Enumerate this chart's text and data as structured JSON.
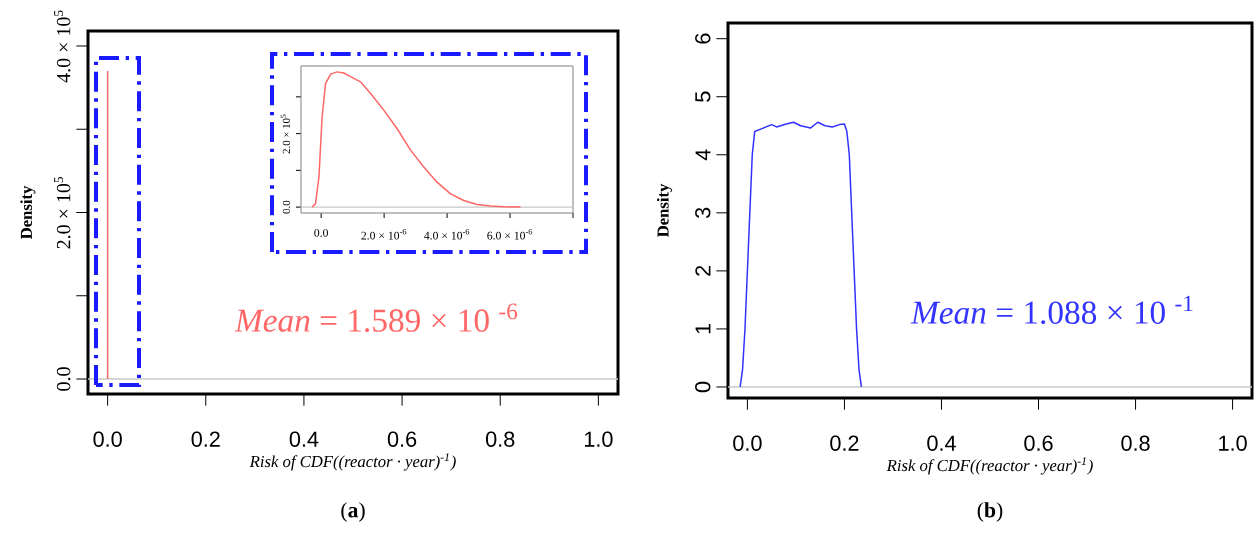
{
  "chart_data": [
    {
      "type": "line",
      "xlabel": "Risk of CDF((reactor · year)$^{-1}$)",
      "ylabel": "Density",
      "xlim": [
        -0.04,
        1.04
      ],
      "xticks": [
        {
          "value": 0,
          "label": "0.0"
        },
        {
          "value": 0.2,
          "label": "0.2"
        },
        {
          "value": 0.4,
          "label": "0.4"
        },
        {
          "value": 0.6,
          "label": "0.6"
        },
        {
          "value": 0.8,
          "label": "0.8"
        },
        {
          "value": 1.0,
          "label": "1.0"
        }
      ],
      "ylim": [
        -18000,
        418000
      ],
      "yticks": [
        {
          "value": 0,
          "label": "0.0"
        },
        {
          "value": 100000,
          "label": null
        },
        {
          "value": 200000,
          "label": "2.0 × 10$^{5}$"
        },
        {
          "value": 300000,
          "label": null
        },
        {
          "value": 400000,
          "label": "4.0 × 10$^{5}$"
        }
      ],
      "series": [
        {
          "color": "#ff6666",
          "x": [
            0,
            0
          ],
          "values": [
            0,
            370000
          ]
        }
      ],
      "ref_lines": [
        {
          "axis": "y",
          "value": 0,
          "color": "#c8c8c8"
        }
      ],
      "annotations": [
        "*Mean* = 1.589 × 10 $^{-6}$",
        "(**a**)"
      ]
    },
    {
      "type": "line",
      "xlim": [
        -6.4e-07,
        8e-06
      ],
      "xticks": [
        {
          "value": 0,
          "label": "0.0"
        },
        {
          "value": 2e-06,
          "label": "2.0 × 10$^{-6}$"
        },
        {
          "value": 4e-06,
          "label": "4.0 × 10$^{-6}$"
        },
        {
          "value": 6e-06,
          "label": "6.0 × 10$^{-6}$"
        },
        {
          "value": 8e-06,
          "label": null
        }
      ],
      "ylim": [
        -16000,
        384000
      ],
      "yticks": [
        {
          "value": 0,
          "label": "0.0"
        },
        {
          "value": 100000,
          "label": null
        },
        {
          "value": 200000,
          "label": "2.0 × 10$^{5}$"
        },
        {
          "value": 300000,
          "label": null
        }
      ],
      "series": [
        {
          "color": "#ff6666",
          "x": [
            -2.9e-07,
            -1.8e-07,
            -7e-08,
            3e-08,
            1.4e-07,
            3e-07,
            5.1e-07,
            7.2e-07,
            9.3e-07,
            1.25e-06,
            1.57e-06,
            1.99e-06,
            2.41e-06,
            2.84e-06,
            3.26e-06,
            3.68e-06,
            4.11e-06,
            4.53e-06,
            4.95e-06,
            5.38e-06,
            5.8e-06,
            6.33e-06
          ],
          "values": [
            0,
            9000,
            82000,
            245000,
            336000,
            362000,
            368000,
            365000,
            355000,
            341000,
            309000,
            264000,
            214000,
            155000,
            109000,
            68000,
            36000,
            18000,
            7000,
            3000,
            1000,
            0
          ]
        }
      ],
      "ref_lines": [
        {
          "axis": "y",
          "value": 0,
          "color": "#c8c8c8"
        }
      ]
    },
    {
      "type": "line",
      "xlabel": "Risk of CDF((reactor · year)$^{-1}$)",
      "ylabel": "Density",
      "xlim": [
        -0.04,
        1.04
      ],
      "xticks": [
        {
          "value": 0,
          "label": "0.0"
        },
        {
          "value": 0.2,
          "label": "0.2"
        },
        {
          "value": 0.4,
          "label": "0.4"
        },
        {
          "value": 0.6,
          "label": "0.6"
        },
        {
          "value": 0.8,
          "label": "0.8"
        },
        {
          "value": 1.0,
          "label": "1.0"
        }
      ],
      "ylim": [
        -0.19,
        6.27
      ],
      "yticks": [
        0,
        1,
        2,
        3,
        4,
        5,
        6
      ],
      "series": [
        {
          "color": "#3333ff",
          "x": [
            -0.015,
            -0.01,
            -0.005,
            0.0,
            0.005,
            0.01,
            0.015,
            0.03,
            0.05,
            0.06,
            0.08,
            0.095,
            0.11,
            0.13,
            0.145,
            0.16,
            0.175,
            0.19,
            0.2,
            0.205,
            0.21,
            0.215,
            0.22,
            0.225,
            0.23,
            0.235
          ],
          "values": [
            0,
            0.3,
            1.0,
            2.0,
            3.0,
            4.0,
            4.4,
            4.45,
            4.52,
            4.48,
            4.53,
            4.56,
            4.5,
            4.46,
            4.56,
            4.5,
            4.48,
            4.52,
            4.53,
            4.4,
            4.0,
            3.0,
            2.0,
            1.0,
            0.3,
            0
          ]
        }
      ],
      "ref_lines": [
        {
          "axis": "y",
          "value": 0,
          "color": "#c8c8c8"
        }
      ],
      "annotations": [
        "*Mean* = 1.088 × 10 $^{-1}$",
        "(**b**)"
      ]
    }
  ]
}
